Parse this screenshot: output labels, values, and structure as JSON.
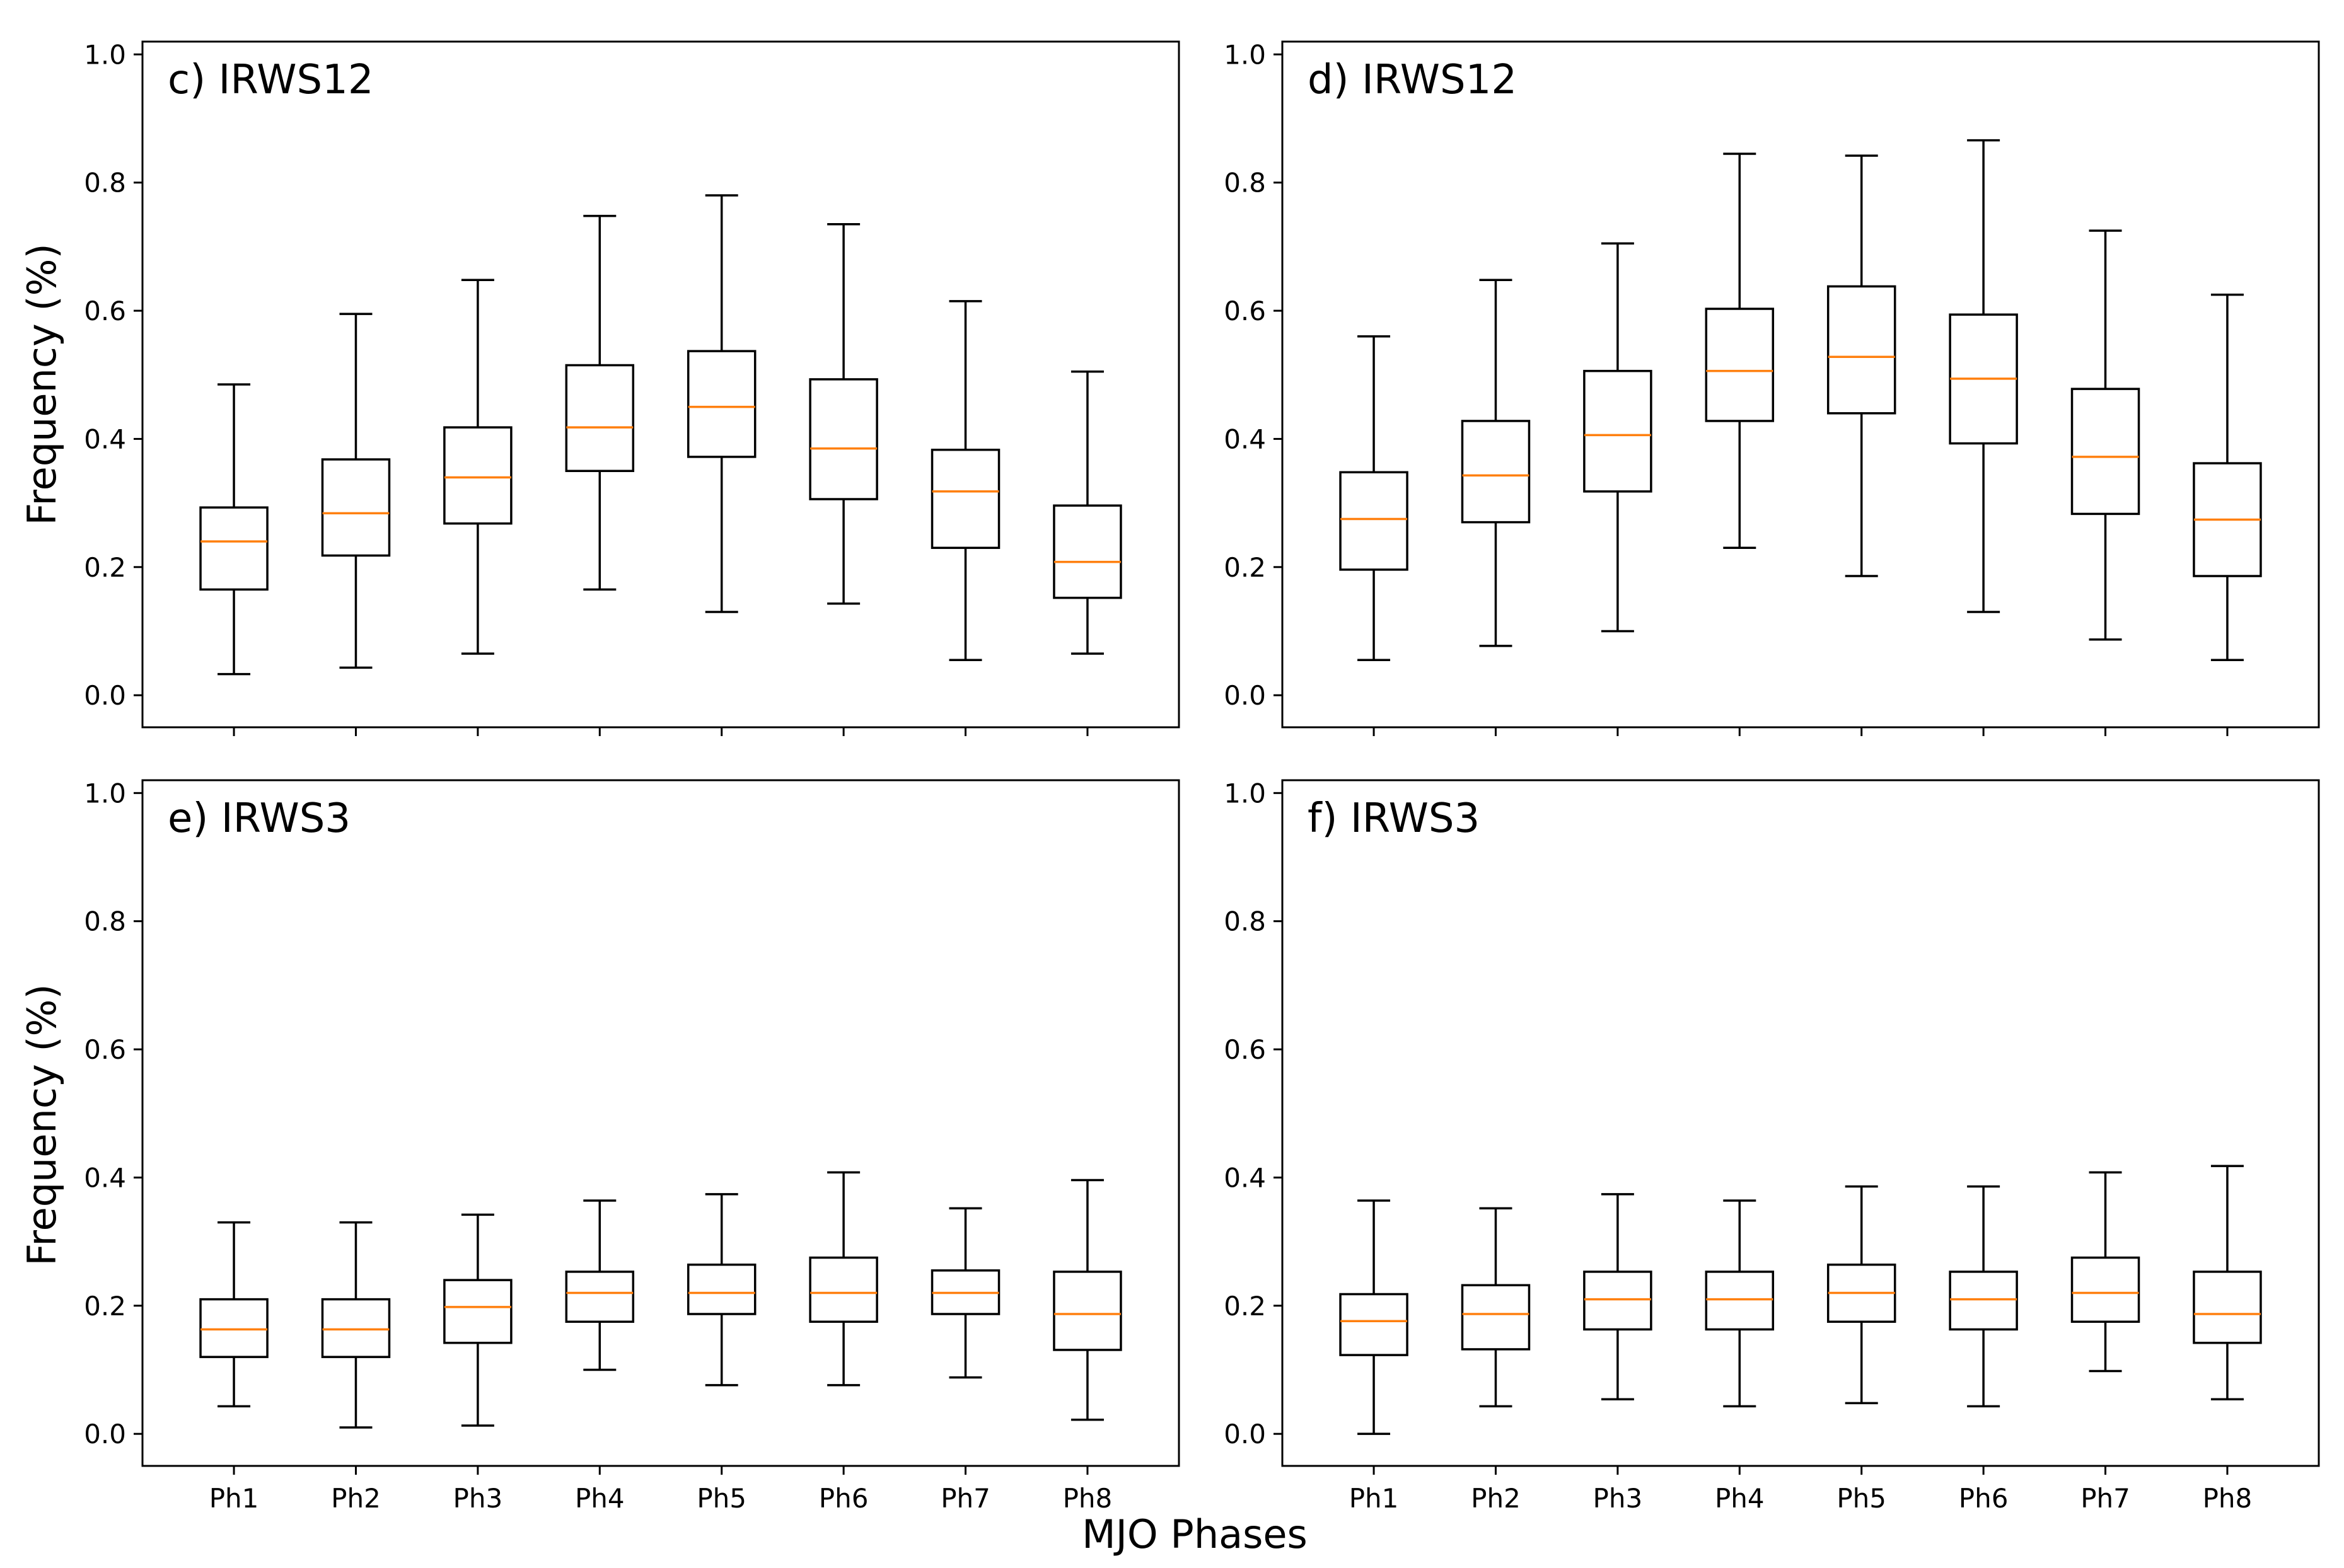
{
  "figure": {
    "ylabel": "Frequency (%)",
    "xlabel": "MJO Phases"
  },
  "colors": {
    "box": "#000000",
    "median": "#ff7f0e",
    "background": "#ffffff"
  },
  "chart_data": [
    {
      "type": "boxplot",
      "title": "c) IRWS12",
      "ylabel": "Frequency (%)",
      "xlabel": "",
      "ylim": [
        -0.05,
        1.02
      ],
      "yticks": [
        "0.0",
        "0.2",
        "0.4",
        "0.6",
        "0.8",
        "1.0"
      ],
      "categories": [
        "Ph1",
        "Ph2",
        "Ph3",
        "Ph4",
        "Ph5",
        "Ph6",
        "Ph7",
        "Ph8"
      ],
      "show_xtick_labels": false,
      "boxes": [
        {
          "whislo": 0.033,
          "q1": 0.165,
          "med": 0.24,
          "q3": 0.293,
          "whishi": 0.485
        },
        {
          "whislo": 0.043,
          "q1": 0.218,
          "med": 0.284,
          "q3": 0.368,
          "whishi": 0.595
        },
        {
          "whislo": 0.065,
          "q1": 0.268,
          "med": 0.34,
          "q3": 0.418,
          "whishi": 0.648
        },
        {
          "whislo": 0.165,
          "q1": 0.35,
          "med": 0.418,
          "q3": 0.515,
          "whishi": 0.748
        },
        {
          "whislo": 0.13,
          "q1": 0.372,
          "med": 0.45,
          "q3": 0.537,
          "whishi": 0.78
        },
        {
          "whislo": 0.143,
          "q1": 0.306,
          "med": 0.385,
          "q3": 0.493,
          "whishi": 0.735
        },
        {
          "whislo": 0.055,
          "q1": 0.23,
          "med": 0.318,
          "q3": 0.383,
          "whishi": 0.615
        },
        {
          "whislo": 0.065,
          "q1": 0.152,
          "med": 0.208,
          "q3": 0.296,
          "whishi": 0.505
        }
      ]
    },
    {
      "type": "boxplot",
      "title": "d) IRWS12",
      "ylabel": "",
      "xlabel": "",
      "ylim": [
        -0.05,
        1.02
      ],
      "yticks": [
        "0.0",
        "0.2",
        "0.4",
        "0.6",
        "0.8",
        "1.0"
      ],
      "categories": [
        "Ph1",
        "Ph2",
        "Ph3",
        "Ph4",
        "Ph5",
        "Ph6",
        "Ph7",
        "Ph8"
      ],
      "show_xtick_labels": false,
      "boxes": [
        {
          "whislo": 0.055,
          "q1": 0.196,
          "med": 0.275,
          "q3": 0.348,
          "whishi": 0.56
        },
        {
          "whislo": 0.077,
          "q1": 0.27,
          "med": 0.343,
          "q3": 0.428,
          "whishi": 0.648
        },
        {
          "whislo": 0.1,
          "q1": 0.318,
          "med": 0.406,
          "q3": 0.506,
          "whishi": 0.705
        },
        {
          "whislo": 0.23,
          "q1": 0.428,
          "med": 0.506,
          "q3": 0.603,
          "whishi": 0.845
        },
        {
          "whislo": 0.186,
          "q1": 0.44,
          "med": 0.528,
          "q3": 0.638,
          "whishi": 0.842
        },
        {
          "whislo": 0.13,
          "q1": 0.393,
          "med": 0.494,
          "q3": 0.594,
          "whishi": 0.866
        },
        {
          "whislo": 0.087,
          "q1": 0.283,
          "med": 0.372,
          "q3": 0.478,
          "whishi": 0.725
        },
        {
          "whislo": 0.055,
          "q1": 0.186,
          "med": 0.274,
          "q3": 0.362,
          "whishi": 0.625
        }
      ]
    },
    {
      "type": "boxplot",
      "title": "e) IRWS3",
      "ylabel": "Frequency (%)",
      "xlabel": "",
      "ylim": [
        -0.05,
        1.02
      ],
      "yticks": [
        "0.0",
        "0.2",
        "0.4",
        "0.6",
        "0.8",
        "1.0"
      ],
      "categories": [
        "Ph1",
        "Ph2",
        "Ph3",
        "Ph4",
        "Ph5",
        "Ph6",
        "Ph7",
        "Ph8"
      ],
      "show_xtick_labels": true,
      "boxes": [
        {
          "whislo": 0.043,
          "q1": 0.12,
          "med": 0.163,
          "q3": 0.21,
          "whishi": 0.33
        },
        {
          "whislo": 0.01,
          "q1": 0.12,
          "med": 0.163,
          "q3": 0.21,
          "whishi": 0.33
        },
        {
          "whislo": 0.013,
          "q1": 0.142,
          "med": 0.198,
          "q3": 0.24,
          "whishi": 0.342
        },
        {
          "whislo": 0.1,
          "q1": 0.175,
          "med": 0.22,
          "q3": 0.253,
          "whishi": 0.364
        },
        {
          "whislo": 0.076,
          "q1": 0.187,
          "med": 0.22,
          "q3": 0.264,
          "whishi": 0.374
        },
        {
          "whislo": 0.076,
          "q1": 0.175,
          "med": 0.22,
          "q3": 0.275,
          "whishi": 0.408
        },
        {
          "whislo": 0.088,
          "q1": 0.187,
          "med": 0.22,
          "q3": 0.255,
          "whishi": 0.352
        },
        {
          "whislo": 0.022,
          "q1": 0.131,
          "med": 0.187,
          "q3": 0.253,
          "whishi": 0.396
        }
      ]
    },
    {
      "type": "boxplot",
      "title": "f) IRWS3",
      "ylabel": "",
      "xlabel": "",
      "ylim": [
        -0.05,
        1.02
      ],
      "yticks": [
        "0.0",
        "0.2",
        "0.4",
        "0.6",
        "0.8",
        "1.0"
      ],
      "categories": [
        "Ph1",
        "Ph2",
        "Ph3",
        "Ph4",
        "Ph5",
        "Ph6",
        "Ph7",
        "Ph8"
      ],
      "show_xtick_labels": true,
      "boxes": [
        {
          "whislo": 0.0,
          "q1": 0.123,
          "med": 0.176,
          "q3": 0.218,
          "whishi": 0.364
        },
        {
          "whislo": 0.043,
          "q1": 0.132,
          "med": 0.187,
          "q3": 0.232,
          "whishi": 0.352
        },
        {
          "whislo": 0.054,
          "q1": 0.163,
          "med": 0.21,
          "q3": 0.253,
          "whishi": 0.374
        },
        {
          "whislo": 0.043,
          "q1": 0.163,
          "med": 0.21,
          "q3": 0.253,
          "whishi": 0.364
        },
        {
          "whislo": 0.048,
          "q1": 0.175,
          "med": 0.22,
          "q3": 0.264,
          "whishi": 0.386
        },
        {
          "whislo": 0.043,
          "q1": 0.163,
          "med": 0.21,
          "q3": 0.253,
          "whishi": 0.386
        },
        {
          "whislo": 0.098,
          "q1": 0.175,
          "med": 0.22,
          "q3": 0.275,
          "whishi": 0.408
        },
        {
          "whislo": 0.054,
          "q1": 0.142,
          "med": 0.187,
          "q3": 0.253,
          "whishi": 0.418
        }
      ]
    }
  ]
}
